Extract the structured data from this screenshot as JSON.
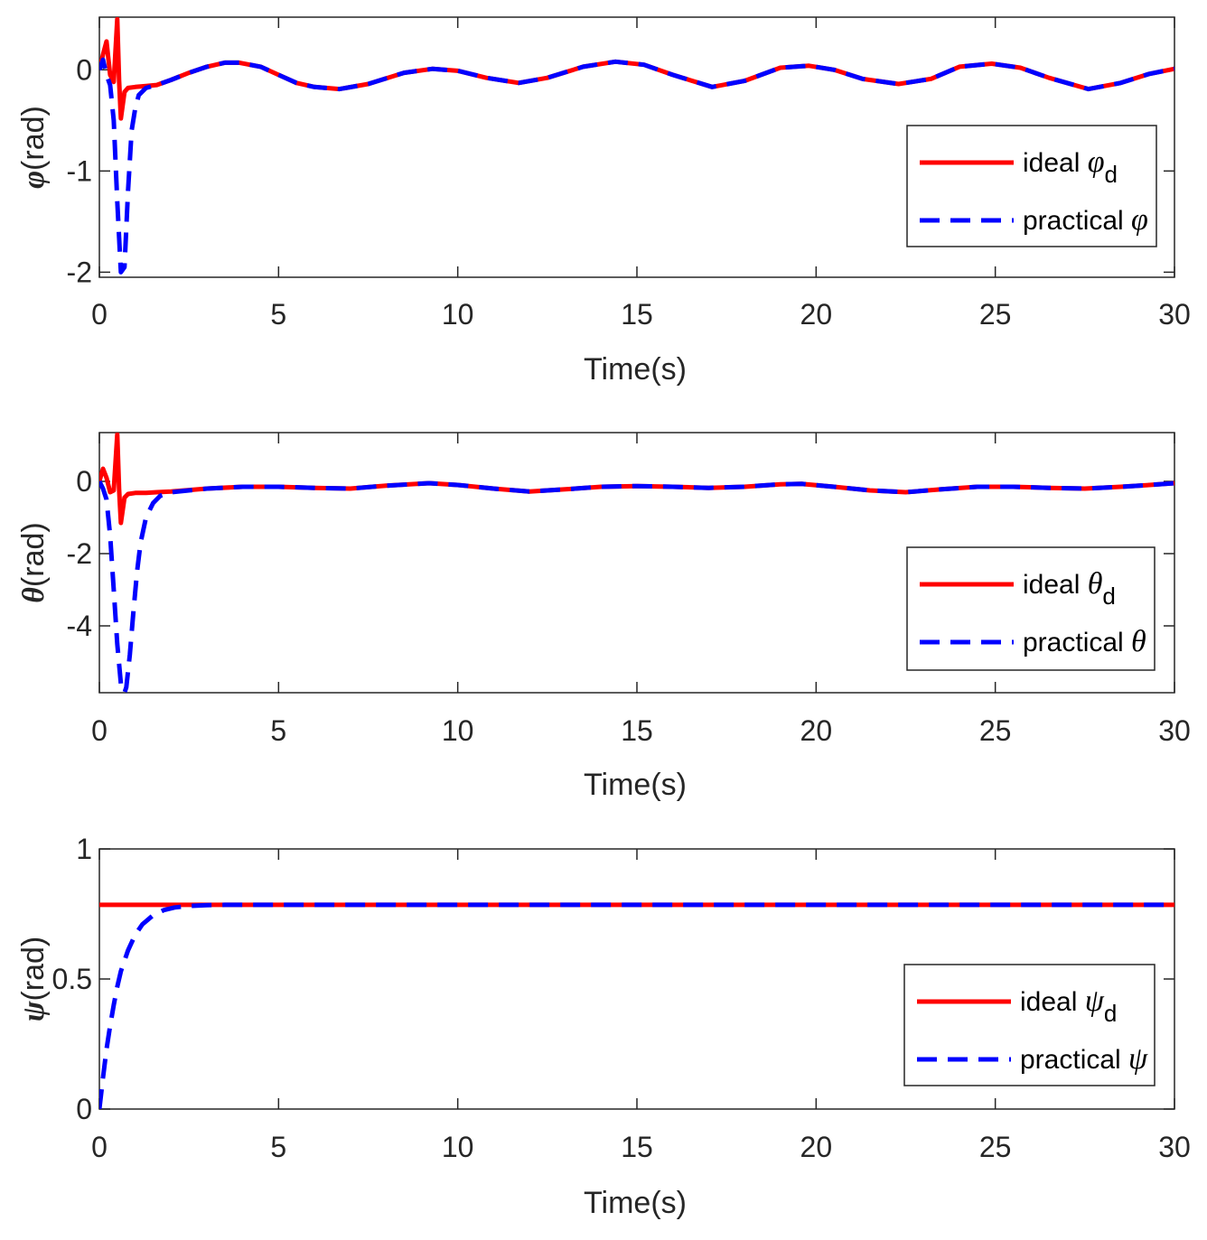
{
  "chart_data": [
    {
      "type": "line",
      "title": "",
      "xlabel": "Time(s)",
      "ylabel_symbol": "φ",
      "ylabel_unit": "(rad)",
      "xlim": [
        0,
        30
      ],
      "ylim": [
        -2.05,
        0.52
      ],
      "xticks": [
        "0",
        "5",
        "10",
        "15",
        "20",
        "25",
        "30"
      ],
      "xtick_values": [
        0,
        5,
        10,
        15,
        20,
        25,
        30
      ],
      "yticks": [
        "-2",
        "-1",
        "0"
      ],
      "ytick_values": [
        -2,
        -1,
        0
      ],
      "legend_position": "right",
      "series": [
        {
          "name": "ideal",
          "symbol": "φ",
          "subscript": "d",
          "color": "#ff0000",
          "style": "solid",
          "x": [
            0,
            0.1,
            0.2,
            0.3,
            0.4,
            0.5,
            0.55,
            0.6,
            0.7,
            0.8,
            1.0,
            1.3,
            1.6,
            2.0,
            2.5,
            3.0,
            3.5,
            3.9,
            4.5,
            5.0,
            5.5,
            6.0,
            6.7,
            7.5,
            8.5,
            9.3,
            10.0,
            10.8,
            11.7,
            12.5,
            13.5,
            14.4,
            15.2,
            16.0,
            17.1,
            18.0,
            19.0,
            19.8,
            20.5,
            21.3,
            22.3,
            23.2,
            24.0,
            24.9,
            25.7,
            26.5,
            27.6,
            28.5,
            29.3,
            30.0
          ],
          "values": [
            0.0,
            0.15,
            0.28,
            -0.05,
            -0.12,
            0.5,
            -0.1,
            -0.48,
            -0.22,
            -0.18,
            -0.17,
            -0.16,
            -0.15,
            -0.1,
            -0.03,
            0.03,
            0.07,
            0.07,
            0.03,
            -0.05,
            -0.13,
            -0.17,
            -0.19,
            -0.14,
            -0.03,
            0.01,
            -0.01,
            -0.08,
            -0.13,
            -0.08,
            0.03,
            0.08,
            0.05,
            -0.05,
            -0.17,
            -0.11,
            0.02,
            0.04,
            0.0,
            -0.09,
            -0.14,
            -0.09,
            0.03,
            0.06,
            0.02,
            -0.08,
            -0.19,
            -0.13,
            -0.04,
            0.01
          ]
        },
        {
          "name": "practical",
          "symbol": "φ",
          "subscript": "",
          "color": "#0000ff",
          "style": "dashed",
          "x": [
            0,
            0.1,
            0.2,
            0.3,
            0.4,
            0.5,
            0.6,
            0.7,
            0.8,
            0.9,
            1.0,
            1.1,
            1.3,
            1.6,
            2.0,
            2.5,
            3.0,
            3.5,
            3.9,
            4.5,
            5.0,
            5.5,
            6.0,
            6.7,
            7.5,
            8.5,
            9.3,
            10.0,
            10.8,
            11.7,
            12.5,
            13.5,
            14.4,
            15.2,
            16.0,
            17.1,
            18.0,
            19.0,
            19.8,
            20.5,
            21.3,
            22.3,
            23.2,
            24.0,
            24.9,
            25.7,
            26.5,
            27.6,
            28.5,
            29.3,
            30.0
          ],
          "values": [
            0.0,
            0.1,
            -0.05,
            -0.15,
            -0.5,
            -1.3,
            -2.0,
            -1.95,
            -1.2,
            -0.6,
            -0.38,
            -0.25,
            -0.18,
            -0.15,
            -0.1,
            -0.03,
            0.03,
            0.07,
            0.07,
            0.03,
            -0.05,
            -0.13,
            -0.17,
            -0.19,
            -0.14,
            -0.03,
            0.01,
            -0.01,
            -0.08,
            -0.13,
            -0.08,
            0.03,
            0.08,
            0.05,
            -0.05,
            -0.17,
            -0.11,
            0.02,
            0.04,
            0.0,
            -0.09,
            -0.14,
            -0.09,
            0.03,
            0.06,
            0.02,
            -0.08,
            -0.19,
            -0.13,
            -0.04,
            0.01
          ]
        }
      ]
    },
    {
      "type": "line",
      "title": "",
      "xlabel": "Time(s)",
      "ylabel_symbol": "θ",
      "ylabel_unit": "(rad)",
      "xlim": [
        0,
        30
      ],
      "ylim": [
        -5.85,
        1.35
      ],
      "xticks": [
        "0",
        "5",
        "10",
        "15",
        "20",
        "25",
        "30"
      ],
      "xtick_values": [
        0,
        5,
        10,
        15,
        20,
        25,
        30
      ],
      "yticks": [
        "-4",
        "-2",
        "0"
      ],
      "ytick_values": [
        -4,
        -2,
        0
      ],
      "legend_position": "right",
      "series": [
        {
          "name": "ideal",
          "symbol": "θ",
          "subscript": "d",
          "color": "#ff0000",
          "style": "solid",
          "x": [
            0,
            0.1,
            0.2,
            0.3,
            0.4,
            0.5,
            0.55,
            0.6,
            0.7,
            0.8,
            1.0,
            1.3,
            1.6,
            2.0,
            3.0,
            4.0,
            5.0,
            6.0,
            7.0,
            8.0,
            9.2,
            10.0,
            11.0,
            12.0,
            13.0,
            14.0,
            15.0,
            16.0,
            17.0,
            18.0,
            19.0,
            19.6,
            20.5,
            21.5,
            22.5,
            23.5,
            24.5,
            25.5,
            26.5,
            27.5,
            28.5,
            29.3,
            30.0
          ],
          "values": [
            0.0,
            0.35,
            0.1,
            -0.3,
            -0.25,
            1.3,
            -0.2,
            -1.15,
            -0.45,
            -0.35,
            -0.32,
            -0.32,
            -0.3,
            -0.28,
            -0.2,
            -0.15,
            -0.15,
            -0.18,
            -0.2,
            -0.12,
            -0.05,
            -0.1,
            -0.2,
            -0.28,
            -0.22,
            -0.15,
            -0.13,
            -0.15,
            -0.18,
            -0.15,
            -0.08,
            -0.07,
            -0.15,
            -0.25,
            -0.3,
            -0.22,
            -0.15,
            -0.15,
            -0.18,
            -0.2,
            -0.15,
            -0.1,
            -0.05
          ]
        },
        {
          "name": "practical",
          "symbol": "θ",
          "subscript": "",
          "color": "#0000ff",
          "style": "dashed",
          "x": [
            0,
            0.1,
            0.2,
            0.3,
            0.4,
            0.5,
            0.6,
            0.7,
            0.75,
            0.85,
            0.95,
            1.05,
            1.15,
            1.3,
            1.5,
            1.7,
            2.0,
            3.0,
            4.0,
            5.0,
            6.0,
            7.0,
            8.0,
            9.2,
            10.0,
            11.0,
            12.0,
            13.0,
            14.0,
            15.0,
            16.0,
            17.0,
            18.0,
            19.0,
            19.6,
            20.5,
            21.5,
            22.5,
            23.5,
            24.5,
            25.5,
            26.5,
            27.5,
            28.5,
            29.3,
            30.0
          ],
          "values": [
            0.0,
            -0.2,
            -0.5,
            -1.5,
            -3.0,
            -4.5,
            -5.6,
            -5.85,
            -5.7,
            -4.8,
            -3.6,
            -2.5,
            -1.7,
            -1.0,
            -0.6,
            -0.4,
            -0.3,
            -0.2,
            -0.15,
            -0.15,
            -0.18,
            -0.2,
            -0.12,
            -0.05,
            -0.1,
            -0.2,
            -0.28,
            -0.22,
            -0.15,
            -0.13,
            -0.15,
            -0.18,
            -0.15,
            -0.08,
            -0.07,
            -0.15,
            -0.25,
            -0.3,
            -0.22,
            -0.15,
            -0.15,
            -0.18,
            -0.2,
            -0.15,
            -0.1,
            -0.05
          ]
        }
      ]
    },
    {
      "type": "line",
      "title": "",
      "xlabel": "Time(s)",
      "ylabel_symbol": "ψ",
      "ylabel_unit": "(rad)",
      "xlim": [
        0,
        30
      ],
      "ylim": [
        0,
        1
      ],
      "xticks": [
        "0",
        "5",
        "10",
        "15",
        "20",
        "25",
        "30"
      ],
      "xtick_values": [
        0,
        5,
        10,
        15,
        20,
        25,
        30
      ],
      "yticks": [
        "0",
        "0.5",
        "1"
      ],
      "ytick_values": [
        0,
        0.5,
        1
      ],
      "legend_position": "right",
      "series": [
        {
          "name": "ideal",
          "symbol": "ψ",
          "subscript": "d",
          "color": "#ff0000",
          "style": "solid",
          "x": [
            0,
            30
          ],
          "values": [
            0.785,
            0.785
          ]
        },
        {
          "name": "practical",
          "symbol": "ψ",
          "subscript": "",
          "color": "#0000ff",
          "style": "dashed",
          "x": [
            0,
            0.1,
            0.2,
            0.3,
            0.4,
            0.5,
            0.6,
            0.8,
            1.0,
            1.2,
            1.5,
            1.8,
            2.1,
            2.5,
            3.0,
            3.5,
            30
          ],
          "values": [
            0.0,
            0.12,
            0.23,
            0.32,
            0.4,
            0.47,
            0.53,
            0.61,
            0.67,
            0.71,
            0.745,
            0.765,
            0.775,
            0.781,
            0.784,
            0.785,
            0.785
          ]
        }
      ]
    }
  ]
}
